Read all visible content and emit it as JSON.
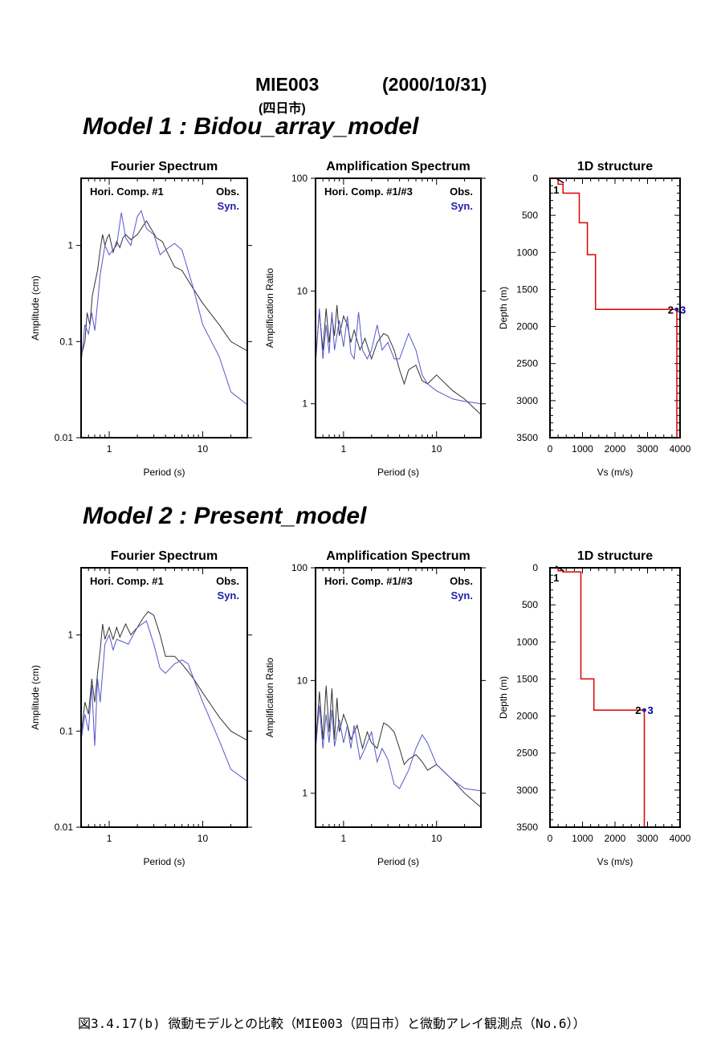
{
  "header": {
    "station": "MIE003",
    "date": "(2000/10/31)",
    "city": "(四日市)"
  },
  "caption": "図3.4.17(b)  微動モデルとの比較（MIE003（四日市）と微動アレイ観測点（No.6））",
  "chart_data": [
    {
      "model_title": "Model 1 : Bidou_array_model",
      "fourier": {
        "type": "line",
        "title": "Fourier Spectrum",
        "xlabel": "Period (s)",
        "ylabel": "Amplitude (cm)",
        "xscale": "log",
        "yscale": "log",
        "xlim": [
          0.5,
          30
        ],
        "ylim": [
          0.01,
          5
        ],
        "xticks": [
          "1",
          "10"
        ],
        "yticks": [
          "0.01",
          "0.1",
          "1"
        ],
        "legend": {
          "label": "Hori. Comp. #1",
          "obs": "Obs.",
          "syn": "Syn."
        },
        "series": [
          {
            "name": "Obs.",
            "color": "#333333",
            "x": [
              0.5,
              0.55,
              0.58,
              0.62,
              0.66,
              0.7,
              0.75,
              0.8,
              0.85,
              0.9,
              0.95,
              1.0,
              1.1,
              1.2,
              1.3,
              1.4,
              1.5,
              1.7,
              2.0,
              2.5,
              2.8,
              3.2,
              3.7,
              4.3,
              5.0,
              6.0,
              8.0,
              10,
              15,
              20,
              30
            ],
            "y": [
              0.07,
              0.1,
              0.2,
              0.15,
              0.3,
              0.4,
              0.55,
              0.9,
              1.3,
              1.0,
              1.2,
              1.3,
              0.85,
              1.1,
              0.95,
              1.2,
              1.3,
              1.15,
              1.3,
              1.8,
              1.5,
              1.2,
              1.1,
              0.8,
              0.6,
              0.55,
              0.35,
              0.25,
              0.15,
              0.1,
              0.08
            ]
          },
          {
            "name": "Syn.",
            "color": "#5555cc",
            "x": [
              0.5,
              0.55,
              0.6,
              0.65,
              0.7,
              0.75,
              0.8,
              0.9,
              1.0,
              1.1,
              1.2,
              1.35,
              1.5,
              1.7,
              2.0,
              2.2,
              2.5,
              3.0,
              3.5,
              4.0,
              5.0,
              6.0,
              8.0,
              10,
              15,
              20,
              30
            ],
            "y": [
              0.06,
              0.15,
              0.12,
              0.2,
              0.13,
              0.25,
              0.5,
              1.0,
              0.8,
              0.9,
              1.0,
              2.2,
              1.2,
              1.0,
              2.0,
              2.3,
              1.5,
              1.3,
              0.8,
              0.9,
              1.05,
              0.9,
              0.35,
              0.15,
              0.07,
              0.03,
              0.022
            ]
          }
        ]
      },
      "amplification": {
        "type": "line",
        "title": "Amplification Spectrum",
        "xlabel": "Period (s)",
        "ylabel": "Amplification Ratio",
        "xscale": "log",
        "yscale": "log",
        "xlim": [
          0.5,
          30
        ],
        "ylim": [
          0.5,
          100
        ],
        "xticks": [
          "1",
          "10"
        ],
        "yticks": [
          "1",
          "10",
          "100"
        ],
        "legend": {
          "label": "Hori. Comp. #1/#3",
          "obs": "Obs.",
          "syn": "Syn."
        },
        "series": [
          {
            "name": "Obs.",
            "color": "#333333",
            "x": [
              0.5,
              0.55,
              0.6,
              0.65,
              0.7,
              0.75,
              0.8,
              0.85,
              0.9,
              1.0,
              1.1,
              1.2,
              1.3,
              1.5,
              1.7,
              2.0,
              2.3,
              2.7,
              3.0,
              3.5,
              4.0,
              4.5,
              5.0,
              6.0,
              7.0,
              8.0,
              10,
              15,
              20,
              30
            ],
            "y": [
              2.5,
              6.5,
              3.0,
              7.0,
              3.5,
              6.0,
              4.0,
              7.5,
              4.0,
              6.0,
              5.0,
              3.5,
              4.5,
              3.0,
              3.8,
              2.5,
              3.5,
              4.2,
              4.0,
              3.0,
              2.0,
              1.5,
              2.0,
              2.2,
              1.6,
              1.5,
              1.8,
              1.3,
              1.1,
              0.8
            ]
          },
          {
            "name": "Syn.",
            "color": "#5555cc",
            "x": [
              0.5,
              0.55,
              0.6,
              0.65,
              0.7,
              0.75,
              0.8,
              0.9,
              1.0,
              1.1,
              1.2,
              1.3,
              1.45,
              1.6,
              1.8,
              2.0,
              2.3,
              2.6,
              3.0,
              3.5,
              4.0,
              5.0,
              6.0,
              7.0,
              8.0,
              10,
              15,
              20,
              30
            ],
            "y": [
              2.2,
              7.0,
              2.5,
              5.0,
              2.8,
              6.5,
              3.0,
              5.5,
              3.2,
              6.0,
              2.8,
              2.5,
              6.5,
              3.0,
              2.5,
              3.0,
              5.0,
              3.0,
              3.5,
              2.5,
              2.5,
              4.2,
              3.0,
              1.8,
              1.5,
              1.3,
              1.1,
              1.05,
              1.0
            ]
          }
        ]
      },
      "structure": {
        "type": "line",
        "title": "1D structure",
        "xlabel": "Vs (m/s)",
        "ylabel": "Depth (m)",
        "xlim": [
          0,
          4000
        ],
        "ylim": [
          0,
          3500
        ],
        "xticks": [
          "0",
          "1000",
          "2000",
          "3000",
          "4000"
        ],
        "yticks": [
          "0",
          "500",
          "1000",
          "1500",
          "2000",
          "2500",
          "3000",
          "3500"
        ],
        "profile": {
          "color": "#dd0000",
          "vs": [
            250,
            250,
            400,
            400,
            900,
            900,
            1150,
            1150,
            1400,
            1400,
            3900,
            3900
          ],
          "depth": [
            0,
            80,
            80,
            200,
            200,
            600,
            600,
            1030,
            1030,
            1770,
            1770,
            3500
          ]
        },
        "markers": [
          {
            "label": "1",
            "vs": 300,
            "depth": 30,
            "color": "#000000"
          },
          {
            "label": "2",
            "vs": 3900,
            "depth": 1770,
            "color": "#000000"
          },
          {
            "label": "3",
            "vs": 3900,
            "depth": 1770,
            "color": "#0000aa"
          }
        ]
      }
    },
    {
      "model_title": "Model 2 : Present_model",
      "fourier": {
        "type": "line",
        "title": "Fourier Spectrum",
        "xlabel": "Period (s)",
        "ylabel": "Amplitude (cm)",
        "xscale": "log",
        "yscale": "log",
        "xlim": [
          0.5,
          30
        ],
        "ylim": [
          0.01,
          5
        ],
        "xticks": [
          "1",
          "10"
        ],
        "yticks": [
          "0.01",
          "0.1",
          "1"
        ],
        "legend": {
          "label": "Hori. Comp. #1",
          "obs": "Obs.",
          "syn": "Syn."
        },
        "series": [
          {
            "name": "Obs.",
            "color": "#333333",
            "x": [
              0.5,
              0.55,
              0.6,
              0.65,
              0.7,
              0.75,
              0.8,
              0.85,
              0.9,
              1.0,
              1.1,
              1.2,
              1.3,
              1.5,
              1.7,
              2.0,
              2.3,
              2.6,
              3.0,
              3.5,
              4.0,
              5.0,
              6.0,
              8.0,
              10,
              15,
              20,
              30
            ],
            "y": [
              0.09,
              0.2,
              0.15,
              0.35,
              0.2,
              0.4,
              0.7,
              1.3,
              0.9,
              1.2,
              0.9,
              1.2,
              0.95,
              1.3,
              1.0,
              1.2,
              1.5,
              1.75,
              1.6,
              1.0,
              0.6,
              0.6,
              0.5,
              0.35,
              0.25,
              0.14,
              0.1,
              0.08
            ]
          },
          {
            "name": "Syn.",
            "color": "#5555cc",
            "x": [
              0.5,
              0.55,
              0.6,
              0.65,
              0.7,
              0.75,
              0.8,
              0.9,
              1.0,
              1.1,
              1.2,
              1.4,
              1.6,
              1.8,
              2.0,
              2.5,
              3.0,
              3.5,
              4.0,
              5.0,
              6.0,
              7.0,
              8.0,
              10,
              15,
              20,
              30
            ],
            "y": [
              0.08,
              0.15,
              0.1,
              0.3,
              0.07,
              0.35,
              0.2,
              0.8,
              1.0,
              0.7,
              0.9,
              0.85,
              0.8,
              1.0,
              1.2,
              1.4,
              0.8,
              0.45,
              0.4,
              0.5,
              0.55,
              0.5,
              0.35,
              0.2,
              0.08,
              0.04,
              0.03
            ]
          }
        ]
      },
      "amplification": {
        "type": "line",
        "title": "Amplification Spectrum",
        "xlabel": "Period (s)",
        "ylabel": "Amplification Ratio",
        "xscale": "log",
        "yscale": "log",
        "xlim": [
          0.5,
          30
        ],
        "ylim": [
          0.5,
          100
        ],
        "xticks": [
          "1",
          "10"
        ],
        "yticks": [
          "1",
          "10",
          "100"
        ],
        "legend": {
          "label": "Hori. Comp. #1/#3",
          "obs": "Obs.",
          "syn": "Syn."
        },
        "series": [
          {
            "name": "Obs.",
            "color": "#333333",
            "x": [
              0.5,
              0.55,
              0.6,
              0.65,
              0.7,
              0.75,
              0.8,
              0.85,
              0.9,
              1.0,
              1.1,
              1.2,
              1.4,
              1.6,
              1.8,
              2.0,
              2.3,
              2.7,
              3.0,
              3.5,
              4.0,
              4.5,
              5.0,
              6.0,
              7.0,
              8.0,
              10,
              15,
              20,
              30
            ],
            "y": [
              2.5,
              8.0,
              3.0,
              9.0,
              3.5,
              8.5,
              3.0,
              7.0,
              3.5,
              5.0,
              4.0,
              3.0,
              4.0,
              2.5,
              3.5,
              2.8,
              2.5,
              4.2,
              4.0,
              3.5,
              2.5,
              1.8,
              2.0,
              2.2,
              1.9,
              1.6,
              1.8,
              1.3,
              1.0,
              0.75
            ]
          },
          {
            "name": "Syn.",
            "color": "#5555cc",
            "x": [
              0.5,
              0.55,
              0.6,
              0.65,
              0.7,
              0.75,
              0.8,
              0.9,
              1.0,
              1.1,
              1.2,
              1.3,
              1.5,
              1.7,
              2.0,
              2.3,
              2.6,
              3.0,
              3.5,
              4.0,
              5.0,
              6.0,
              7.0,
              8.0,
              10,
              15,
              20,
              30
            ],
            "y": [
              2.4,
              6.0,
              2.5,
              5.0,
              2.8,
              5.5,
              2.6,
              4.5,
              2.8,
              4.0,
              2.5,
              4.0,
              2.0,
              2.5,
              3.5,
              1.9,
              2.5,
              2.0,
              1.2,
              1.1,
              1.6,
              2.5,
              3.3,
              2.8,
              1.8,
              1.3,
              1.1,
              1.05
            ]
          }
        ]
      },
      "structure": {
        "type": "line",
        "title": "1D structure",
        "xlabel": "Vs (m/s)",
        "ylabel": "Depth (m)",
        "xlim": [
          0,
          4000
        ],
        "ylim": [
          0,
          3500
        ],
        "xticks": [
          "0",
          "1000",
          "2000",
          "3000",
          "4000"
        ],
        "yticks": [
          "0",
          "500",
          "1000",
          "1500",
          "2000",
          "2500",
          "3000",
          "3500"
        ],
        "profile": {
          "color": "#dd0000",
          "vs": [
            250,
            250,
            400,
            400,
            950,
            950,
            1350,
            1350,
            2900,
            2900
          ],
          "depth": [
            0,
            40,
            40,
            55,
            55,
            1500,
            1500,
            1920,
            1920,
            3500
          ]
        },
        "markers": [
          {
            "label": "1",
            "vs": 300,
            "depth": 10,
            "color": "#000000"
          },
          {
            "label": "2",
            "vs": 2900,
            "depth": 1920,
            "color": "#000000"
          },
          {
            "label": "3",
            "vs": 2900,
            "depth": 1920,
            "color": "#0000aa"
          }
        ]
      }
    }
  ]
}
